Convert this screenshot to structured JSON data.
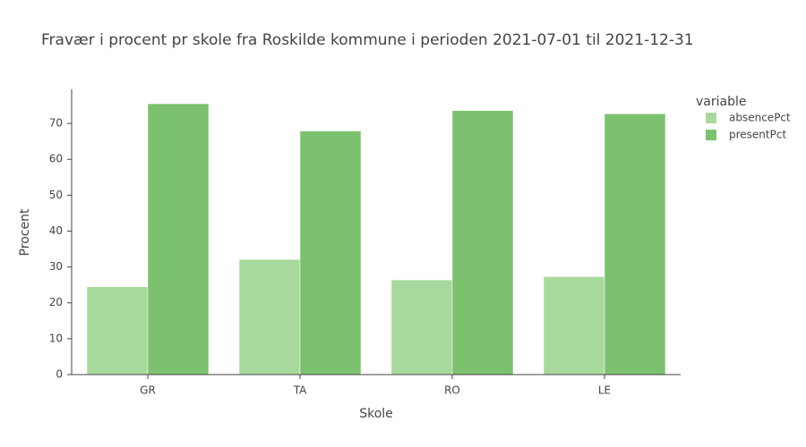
{
  "chart_data": {
    "type": "bar",
    "title": "Fravær i procent pr skole fra Roskilde kommune i perioden 2021-07-01 til 2021-12-31",
    "x_label": "Skole",
    "y_label": "Procent",
    "legend_title": "variable",
    "categories": [
      "GR",
      "TA",
      "RO",
      "LE"
    ],
    "series": [
      {
        "name": "absencePct",
        "color": "#a8d99c",
        "values": [
          24.5,
          32.1,
          26.4,
          27.3
        ]
      },
      {
        "name": "presentPct",
        "color": "#7cc16e",
        "values": [
          75.5,
          67.9,
          73.6,
          72.7
        ]
      }
    ],
    "ylim": [
      0,
      79.5
    ],
    "yticks": [
      0,
      10,
      20,
      30,
      40,
      50,
      60,
      70
    ],
    "grid": false
  }
}
